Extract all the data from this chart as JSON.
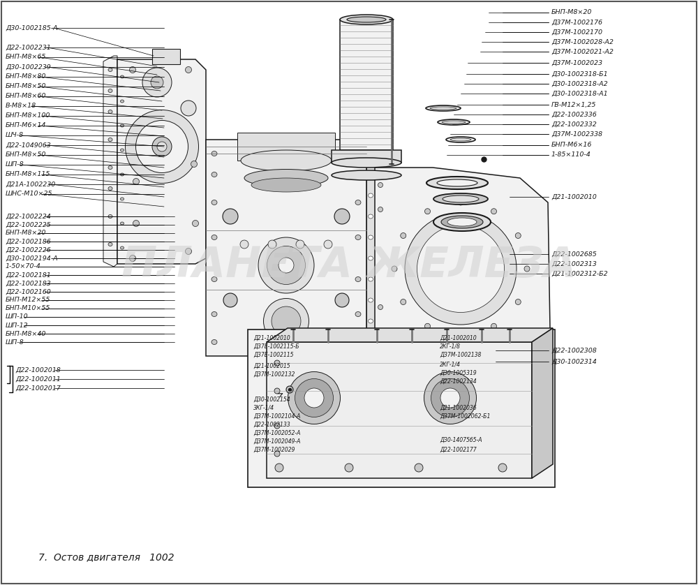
{
  "title": "7.  Остов двигателя   1002",
  "bg_color": "#ffffff",
  "text_color": "#1a1a1a",
  "watermark": "ПЛАНЕТА ЖЕЛЕЗА",
  "left_labels_top": [
    [
      "Д30-1002185-А",
      40
    ],
    [
      "Д22-1002231",
      68
    ],
    [
      "БНП-М8×65",
      82
    ],
    [
      "Д30-1002239",
      96
    ],
    [
      "БНП-М8×80",
      110
    ],
    [
      "БНП-М8×50",
      124
    ],
    [
      "БНП-М8×60",
      138
    ],
    [
      "В-М8×18",
      152
    ],
    [
      "БНП-М8×100",
      166
    ],
    [
      "БНП-М6×14",
      180
    ],
    [
      "ШЧ-8",
      194
    ],
    [
      "Д22-1049063",
      208
    ],
    [
      "БНП-М8×50",
      222
    ],
    [
      "ШП-8",
      236
    ],
    [
      "БНП-М8×115",
      250
    ],
    [
      "Д21А-1002230",
      264
    ],
    [
      "ШНС-М10×25",
      278
    ]
  ],
  "left_labels_mid": [
    [
      "Д22-1002224",
      310
    ],
    [
      "Д22-1002225",
      322
    ],
    [
      "БНП-М8×20",
      334
    ],
    [
      "Д22-1002186",
      346
    ],
    [
      "Д22-1002226",
      358
    ],
    [
      "Д30-1002194-А",
      370
    ],
    [
      "1-50×70-4",
      382
    ],
    [
      "Д22-1002181",
      394
    ],
    [
      "Д22-1002183",
      406
    ],
    [
      "Д22-1002160",
      418
    ],
    [
      "БНП-М12×55",
      430
    ],
    [
      "БНП-М10×55",
      442
    ],
    [
      "ШП-10",
      454
    ],
    [
      "ШП-12",
      466
    ],
    [
      "БНП-М8×40",
      478
    ],
    [
      "ШП-8",
      490
    ]
  ],
  "left_labels_bot": [
    [
      "Д22-1002018",
      530
    ],
    [
      "Д22-1002011",
      543
    ],
    [
      "Д22-1002017",
      556
    ]
  ],
  "right_labels_top": [
    [
      "БНП-М8×20",
      18
    ],
    [
      "Д37М-1002176",
      32
    ],
    [
      "Д37М-1002170",
      46
    ],
    [
      "Д37М-1002028-А2",
      60
    ],
    [
      "Д37М-1002021-А2",
      74
    ],
    [
      "Д37М-1002023",
      90
    ],
    [
      "Д30-1002318-Б1",
      106
    ],
    [
      "Д30-1002318-А2",
      120
    ],
    [
      "Д30-1002318-А1",
      134
    ],
    [
      "ГВ-М12×1,25",
      150
    ],
    [
      "Д22-1002336",
      164
    ],
    [
      "Д22-1002332",
      178
    ],
    [
      "Д37М-1002338",
      192
    ],
    [
      "БНП-М6×16",
      208
    ],
    [
      "1-85×110-4",
      222
    ]
  ],
  "right_labels_mid": [
    [
      "Д21-1002010",
      282
    ],
    [
      "Д22-1002685",
      364
    ],
    [
      "Д22-1002313",
      378
    ],
    [
      "Д21-1002312-Б2",
      392
    ]
  ],
  "right_labels_bot": [
    [
      "Д22-1002308",
      502
    ],
    [
      "Д30-1002314",
      518
    ]
  ],
  "bottom_left_labels": [
    [
      "Д21-1002010",
      484
    ],
    [
      "Д37Е-1002115-Б",
      496
    ],
    [
      "Д37Е-1002115",
      508
    ],
    [
      "Д21-1002015",
      524
    ],
    [
      "Д37М-1002132",
      536
    ],
    [
      "Д30-1002154",
      572
    ],
    [
      "ЗКГ-1/4",
      584
    ],
    [
      "Д37М-1002104-А",
      596
    ],
    [
      "Д22-1002133",
      608
    ],
    [
      "Д37М-1002052-А",
      620
    ],
    [
      "Д37М-1002049-А",
      632
    ],
    [
      "Д37М-1002029",
      644
    ]
  ],
  "bottom_right_labels": [
    [
      "Д21-1002010",
      484
    ],
    [
      "2КГ-1/8",
      496
    ],
    [
      "Д37М-1002138",
      508
    ],
    [
      "2КГ-1/4",
      522
    ],
    [
      "Д30-1005319",
      534
    ],
    [
      "Д22-1002134",
      546
    ],
    [
      "Д21-1002036",
      584
    ],
    [
      "Д37М-1002062-Б1",
      596
    ],
    [
      "Д30-14075б5-А",
      630
    ],
    [
      "Д22-1002177",
      644
    ]
  ]
}
